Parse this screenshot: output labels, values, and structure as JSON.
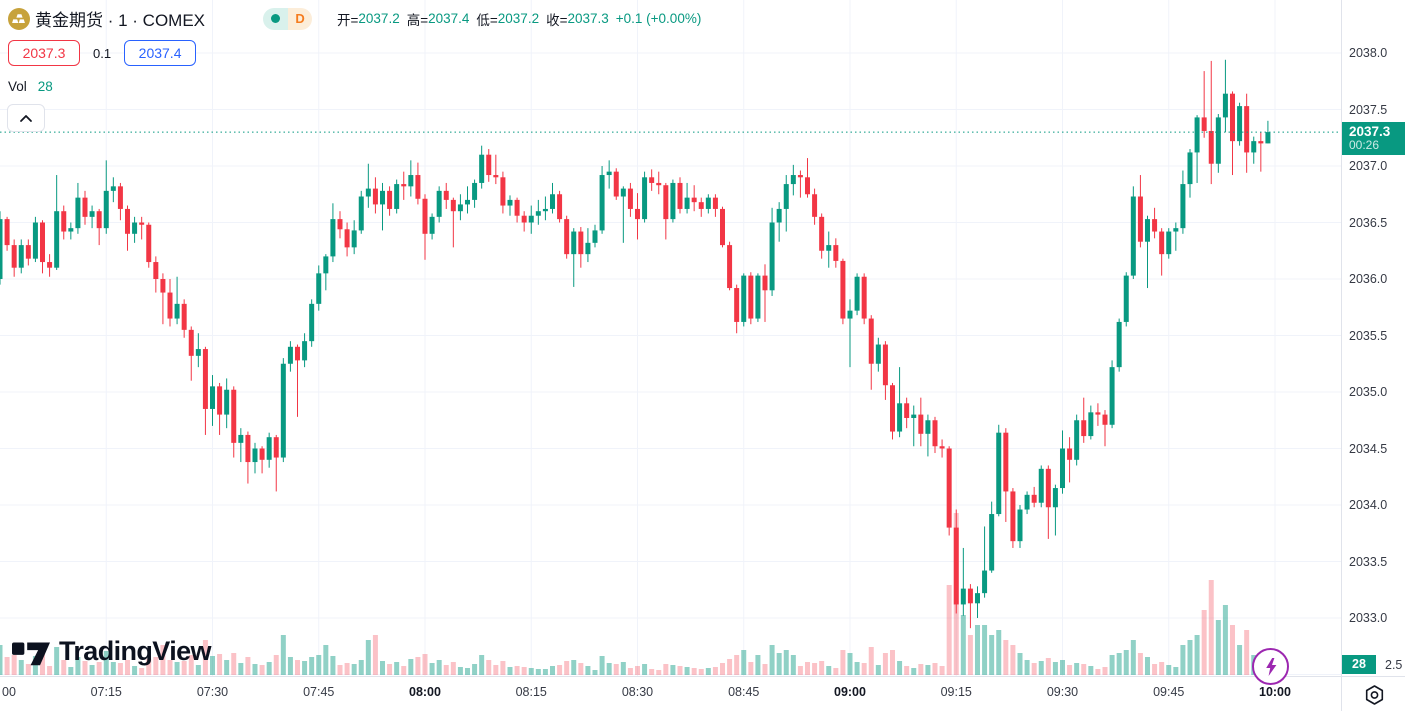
{
  "header": {
    "title": "黄金期货 · 1 · COMEX",
    "interval_badge": "D",
    "ohlc": {
      "open_label": "开=",
      "open_value": "2037.2",
      "high_label": "高=",
      "high_value": "2037.4",
      "low_label": "低=",
      "low_value": "2037.2",
      "close_label": "收=",
      "close_value": "2037.3",
      "change_value": "+0.1 (+0.00%)"
    },
    "bid": "2037.3",
    "spread": "0.1",
    "ask": "2037.4",
    "volume_indicator": {
      "label": "Vol",
      "value": "28"
    }
  },
  "watermark": {
    "brand": "TradingView"
  },
  "icons": {
    "symbol": "gold-bars-icon",
    "collapse": "chevron-up-icon",
    "boost": "lightning-icon",
    "settings": "gear-icon"
  },
  "price_scale": {
    "last_price": "2037.3",
    "countdown": "00:26",
    "volume_badge": "28",
    "partial_bottom_tick": "2.5"
  },
  "colors": {
    "up": "#089981",
    "down": "#f23645",
    "vol_up": "rgba(8,153,129,0.45)",
    "vol_down": "rgba(242,54,69,0.30)",
    "grid": "#f0f3fa",
    "last_line": "#089981",
    "bid": "#f23645",
    "ask": "#2962ff",
    "boost": "#9c27b0"
  },
  "chart_data": {
    "type": "candlestick_with_volume",
    "symbol": "黄金期货 COMEX",
    "interval": "1 minute",
    "start_time": "07:00",
    "last_price": 2037.3,
    "price_axis_ticks": [
      2038.0,
      2037.5,
      2037.0,
      2036.5,
      2036.0,
      2035.5,
      2035.0,
      2034.5,
      2034.0,
      2033.5,
      2033.0,
      2032.5
    ],
    "time_axis_ticks": [
      {
        "label": "00",
        "m": 0,
        "bold": false
      },
      {
        "label": "07:15",
        "m": 15,
        "bold": false
      },
      {
        "label": "07:30",
        "m": 30,
        "bold": false
      },
      {
        "label": "07:45",
        "m": 45,
        "bold": false
      },
      {
        "label": "08:00",
        "m": 60,
        "bold": true
      },
      {
        "label": "08:15",
        "m": 75,
        "bold": false
      },
      {
        "label": "08:30",
        "m": 90,
        "bold": false
      },
      {
        "label": "08:45",
        "m": 105,
        "bold": false
      },
      {
        "label": "09:00",
        "m": 120,
        "bold": true
      },
      {
        "label": "09:15",
        "m": 135,
        "bold": false
      },
      {
        "label": "09:30",
        "m": 150,
        "bold": false
      },
      {
        "label": "09:45",
        "m": 165,
        "bold": false
      },
      {
        "label": "10:00",
        "m": 180,
        "bold": true
      }
    ],
    "candles": [
      [
        2036.0,
        2036.6,
        2035.95,
        2036.53,
        60
      ],
      [
        2036.53,
        2036.55,
        2036.25,
        2036.3,
        36
      ],
      [
        2036.3,
        2036.35,
        2036.02,
        2036.1,
        40
      ],
      [
        2036.1,
        2036.35,
        2036.05,
        2036.3,
        30
      ],
      [
        2036.3,
        2036.35,
        2036.12,
        2036.18,
        22
      ],
      [
        2036.18,
        2036.55,
        2036.15,
        2036.5,
        38
      ],
      [
        2036.5,
        2036.52,
        2036.05,
        2036.15,
        42
      ],
      [
        2036.15,
        2036.22,
        2036.02,
        2036.1,
        18
      ],
      [
        2036.1,
        2036.92,
        2036.08,
        2036.6,
        56
      ],
      [
        2036.6,
        2036.65,
        2036.35,
        2036.42,
        30
      ],
      [
        2036.42,
        2036.5,
        2036.35,
        2036.45,
        16
      ],
      [
        2036.45,
        2036.85,
        2036.4,
        2036.72,
        36
      ],
      [
        2036.72,
        2036.78,
        2036.48,
        2036.55,
        28
      ],
      [
        2036.55,
        2036.65,
        2036.45,
        2036.6,
        20
      ],
      [
        2036.6,
        2036.62,
        2036.3,
        2036.45,
        26
      ],
      [
        2036.45,
        2037.05,
        2036.4,
        2036.78,
        48
      ],
      [
        2036.78,
        2036.9,
        2036.68,
        2036.82,
        26
      ],
      [
        2036.82,
        2036.85,
        2036.52,
        2036.62,
        24
      ],
      [
        2036.62,
        2036.65,
        2036.25,
        2036.4,
        30
      ],
      [
        2036.4,
        2036.55,
        2036.32,
        2036.5,
        18
      ],
      [
        2036.5,
        2036.55,
        2036.35,
        2036.48,
        14
      ],
      [
        2036.48,
        2036.5,
        2036.1,
        2036.15,
        32
      ],
      [
        2036.15,
        2036.2,
        2035.88,
        2036.0,
        36
      ],
      [
        2036.0,
        2036.05,
        2035.6,
        2035.88,
        60
      ],
      [
        2035.88,
        2036.0,
        2035.58,
        2035.65,
        30
      ],
      [
        2035.65,
        2036.02,
        2035.6,
        2035.78,
        26
      ],
      [
        2035.78,
        2035.82,
        2035.48,
        2035.55,
        28
      ],
      [
        2035.55,
        2035.58,
        2035.1,
        2035.32,
        40
      ],
      [
        2035.32,
        2035.52,
        2035.22,
        2035.38,
        20
      ],
      [
        2035.38,
        2035.4,
        2034.62,
        2034.85,
        70
      ],
      [
        2034.85,
        2035.15,
        2034.7,
        2035.05,
        38
      ],
      [
        2035.05,
        2035.08,
        2034.62,
        2034.8,
        42
      ],
      [
        2034.8,
        2035.12,
        2034.68,
        2035.02,
        30
      ],
      [
        2035.02,
        2035.05,
        2034.42,
        2034.55,
        44
      ],
      [
        2034.55,
        2034.68,
        2034.38,
        2034.62,
        24
      ],
      [
        2034.62,
        2034.65,
        2034.19,
        2034.38,
        36
      ],
      [
        2034.38,
        2034.55,
        2034.28,
        2034.5,
        22
      ],
      [
        2034.5,
        2034.52,
        2034.28,
        2034.4,
        20
      ],
      [
        2034.4,
        2034.64,
        2034.33,
        2034.6,
        26
      ],
      [
        2034.6,
        2034.62,
        2034.12,
        2034.42,
        40
      ],
      [
        2034.42,
        2035.3,
        2034.38,
        2035.25,
        80
      ],
      [
        2035.25,
        2035.45,
        2035.18,
        2035.4,
        36
      ],
      [
        2035.4,
        2035.42,
        2034.78,
        2035.28,
        30
      ],
      [
        2035.28,
        2035.52,
        2035.22,
        2035.45,
        28
      ],
      [
        2035.45,
        2035.82,
        2035.4,
        2035.78,
        36
      ],
      [
        2035.78,
        2036.12,
        2035.72,
        2036.05,
        40
      ],
      [
        2036.05,
        2036.22,
        2035.9,
        2036.2,
        60
      ],
      [
        2036.2,
        2036.67,
        2036.15,
        2036.53,
        38
      ],
      [
        2036.53,
        2036.6,
        2036.36,
        2036.44,
        20
      ],
      [
        2036.44,
        2036.5,
        2036.2,
        2036.28,
        24
      ],
      [
        2036.28,
        2036.52,
        2036.22,
        2036.43,
        22
      ],
      [
        2036.43,
        2036.78,
        2036.4,
        2036.73,
        30
      ],
      [
        2036.73,
        2037.02,
        2036.63,
        2036.8,
        70
      ],
      [
        2036.8,
        2036.9,
        2036.58,
        2036.66,
        80
      ],
      [
        2036.66,
        2036.85,
        2036.43,
        2036.78,
        28
      ],
      [
        2036.78,
        2036.82,
        2036.56,
        2036.62,
        22
      ],
      [
        2036.62,
        2036.88,
        2036.58,
        2036.84,
        26
      ],
      [
        2036.84,
        2036.95,
        2036.7,
        2036.82,
        18
      ],
      [
        2036.82,
        2037.05,
        2036.73,
        2036.92,
        32
      ],
      [
        2036.92,
        2037.03,
        2036.66,
        2036.71,
        36
      ],
      [
        2036.71,
        2036.75,
        2036.17,
        2036.4,
        42
      ],
      [
        2036.4,
        2036.58,
        2036.35,
        2036.55,
        24
      ],
      [
        2036.55,
        2036.82,
        2036.5,
        2036.78,
        30
      ],
      [
        2036.78,
        2036.85,
        2036.62,
        2036.7,
        20
      ],
      [
        2036.7,
        2036.72,
        2036.28,
        2036.6,
        26
      ],
      [
        2036.6,
        2036.75,
        2036.52,
        2036.66,
        16
      ],
      [
        2036.66,
        2036.82,
        2036.58,
        2036.7,
        14
      ],
      [
        2036.7,
        2036.88,
        2036.63,
        2036.85,
        22
      ],
      [
        2036.85,
        2037.18,
        2036.8,
        2037.1,
        40
      ],
      [
        2037.1,
        2037.15,
        2036.86,
        2036.92,
        30
      ],
      [
        2036.92,
        2037.1,
        2036.84,
        2036.9,
        20
      ],
      [
        2036.9,
        2036.95,
        2036.58,
        2036.65,
        28
      ],
      [
        2036.65,
        2036.74,
        2036.56,
        2036.7,
        16
      ],
      [
        2036.7,
        2036.72,
        2036.5,
        2036.56,
        18
      ],
      [
        2036.56,
        2036.6,
        2036.42,
        2036.5,
        16
      ],
      [
        2036.5,
        2036.65,
        2036.4,
        2036.56,
        14
      ],
      [
        2036.56,
        2036.7,
        2036.48,
        2036.6,
        12
      ],
      [
        2036.6,
        2036.73,
        2036.52,
        2036.62,
        12
      ],
      [
        2036.62,
        2036.85,
        2036.58,
        2036.75,
        18
      ],
      [
        2036.75,
        2036.78,
        2036.5,
        2036.53,
        20
      ],
      [
        2036.53,
        2036.56,
        2036.18,
        2036.22,
        28
      ],
      [
        2036.22,
        2036.45,
        2035.93,
        2036.42,
        30
      ],
      [
        2036.42,
        2036.46,
        2036.1,
        2036.22,
        24
      ],
      [
        2036.22,
        2036.45,
        2036.15,
        2036.32,
        18
      ],
      [
        2036.32,
        2036.48,
        2036.28,
        2036.43,
        10
      ],
      [
        2036.43,
        2037.0,
        2036.4,
        2036.92,
        38
      ],
      [
        2036.92,
        2037.05,
        2036.8,
        2036.95,
        24
      ],
      [
        2036.95,
        2036.98,
        2036.7,
        2036.73,
        22
      ],
      [
        2036.73,
        2036.82,
        2036.32,
        2036.8,
        26
      ],
      [
        2036.8,
        2036.85,
        2036.55,
        2036.62,
        14
      ],
      [
        2036.62,
        2036.76,
        2036.35,
        2036.53,
        18
      ],
      [
        2036.53,
        2036.95,
        2036.5,
        2036.9,
        22
      ],
      [
        2036.9,
        2036.97,
        2036.78,
        2036.85,
        12
      ],
      [
        2036.85,
        2036.95,
        2036.75,
        2036.83,
        10
      ],
      [
        2036.83,
        2036.85,
        2036.35,
        2036.53,
        22
      ],
      [
        2036.53,
        2036.88,
        2036.5,
        2036.85,
        20
      ],
      [
        2036.85,
        2036.9,
        2036.58,
        2036.62,
        18
      ],
      [
        2036.62,
        2036.85,
        2036.58,
        2036.72,
        16
      ],
      [
        2036.72,
        2036.83,
        2036.6,
        2036.68,
        14
      ],
      [
        2036.68,
        2036.72,
        2036.55,
        2036.62,
        12
      ],
      [
        2036.62,
        2036.75,
        2036.58,
        2036.72,
        14
      ],
      [
        2036.72,
        2036.75,
        2036.55,
        2036.62,
        16
      ],
      [
        2036.62,
        2036.64,
        2036.28,
        2036.3,
        24
      ],
      [
        2036.3,
        2036.33,
        2035.9,
        2035.92,
        32
      ],
      [
        2035.92,
        2035.95,
        2035.52,
        2035.62,
        40
      ],
      [
        2035.62,
        2036.05,
        2035.58,
        2036.03,
        50
      ],
      [
        2036.03,
        2036.06,
        2035.6,
        2035.65,
        26
      ],
      [
        2035.65,
        2036.05,
        2035.62,
        2036.03,
        40
      ],
      [
        2036.03,
        2036.13,
        2035.62,
        2035.9,
        22
      ],
      [
        2035.9,
        2036.63,
        2035.85,
        2036.5,
        60
      ],
      [
        2036.5,
        2036.68,
        2036.33,
        2036.62,
        44
      ],
      [
        2036.62,
        2036.92,
        2036.42,
        2036.84,
        50
      ],
      [
        2036.84,
        2037.01,
        2036.74,
        2036.92,
        40
      ],
      [
        2036.92,
        2036.96,
        2036.72,
        2036.9,
        18
      ],
      [
        2036.9,
        2037.07,
        2036.72,
        2036.75,
        26
      ],
      [
        2036.75,
        2036.8,
        2036.48,
        2036.55,
        24
      ],
      [
        2036.55,
        2036.58,
        2036.18,
        2036.25,
        28
      ],
      [
        2036.25,
        2036.42,
        2036.1,
        2036.3,
        18
      ],
      [
        2036.3,
        2036.36,
        2036.1,
        2036.16,
        14
      ],
      [
        2036.16,
        2036.18,
        2035.6,
        2035.65,
        50
      ],
      [
        2035.65,
        2035.82,
        2035.22,
        2035.72,
        44
      ],
      [
        2035.72,
        2036.05,
        2035.68,
        2036.02,
        26
      ],
      [
        2036.02,
        2036.05,
        2035.6,
        2035.65,
        24
      ],
      [
        2035.65,
        2035.68,
        2035.02,
        2035.25,
        56
      ],
      [
        2035.25,
        2035.48,
        2035.18,
        2035.42,
        20
      ],
      [
        2035.42,
        2035.45,
        2034.93,
        2035.06,
        44
      ],
      [
        2035.06,
        2035.08,
        2034.58,
        2034.65,
        50
      ],
      [
        2034.65,
        2035.22,
        2034.6,
        2034.9,
        28
      ],
      [
        2034.9,
        2034.95,
        2034.68,
        2034.77,
        18
      ],
      [
        2034.77,
        2034.88,
        2034.52,
        2034.8,
        14
      ],
      [
        2034.8,
        2034.95,
        2034.52,
        2034.63,
        22
      ],
      [
        2034.63,
        2034.8,
        2034.43,
        2034.75,
        20
      ],
      [
        2034.75,
        2034.78,
        2034.46,
        2034.52,
        24
      ],
      [
        2034.52,
        2034.58,
        2034.42,
        2034.5,
        18
      ],
      [
        2034.5,
        2034.52,
        2033.73,
        2033.8,
        180
      ],
      [
        2033.8,
        2033.96,
        2033.04,
        2033.12,
        324
      ],
      [
        2033.12,
        2033.62,
        2033.02,
        2033.26,
        120
      ],
      [
        2033.26,
        2033.3,
        2032.91,
        2033.13,
        80
      ],
      [
        2033.13,
        2033.28,
        2033.0,
        2033.22,
        100
      ],
      [
        2033.22,
        2033.81,
        2033.18,
        2033.42,
        100
      ],
      [
        2033.42,
        2034.03,
        2033.4,
        2033.92,
        80
      ],
      [
        2033.92,
        2034.71,
        2033.9,
        2034.64,
        90
      ],
      [
        2034.64,
        2034.68,
        2033.85,
        2034.12,
        70
      ],
      [
        2034.12,
        2034.15,
        2033.62,
        2033.68,
        60
      ],
      [
        2033.68,
        2034.0,
        2033.62,
        2033.96,
        44
      ],
      [
        2033.96,
        2034.12,
        2033.92,
        2034.09,
        30
      ],
      [
        2034.09,
        2034.16,
        2033.98,
        2034.02,
        24
      ],
      [
        2034.02,
        2034.35,
        2033.98,
        2034.32,
        28
      ],
      [
        2034.32,
        2034.35,
        2033.7,
        2033.98,
        34
      ],
      [
        2033.98,
        2034.18,
        2033.73,
        2034.15,
        26
      ],
      [
        2034.15,
        2034.66,
        2034.1,
        2034.5,
        30
      ],
      [
        2034.5,
        2034.6,
        2034.2,
        2034.4,
        20
      ],
      [
        2034.4,
        2034.8,
        2034.35,
        2034.75,
        24
      ],
      [
        2034.75,
        2034.95,
        2034.55,
        2034.61,
        22
      ],
      [
        2034.61,
        2034.88,
        2034.58,
        2034.82,
        18
      ],
      [
        2034.82,
        2034.9,
        2034.7,
        2034.8,
        12
      ],
      [
        2034.8,
        2034.84,
        2034.52,
        2034.71,
        16
      ],
      [
        2034.71,
        2035.28,
        2034.68,
        2035.22,
        40
      ],
      [
        2035.22,
        2035.65,
        2035.18,
        2035.62,
        44
      ],
      [
        2035.62,
        2036.06,
        2035.58,
        2036.03,
        50
      ],
      [
        2036.03,
        2036.82,
        2036.0,
        2036.73,
        70
      ],
      [
        2036.73,
        2036.92,
        2036.28,
        2036.33,
        44
      ],
      [
        2036.33,
        2036.56,
        2035.92,
        2036.53,
        36
      ],
      [
        2036.53,
        2036.63,
        2036.36,
        2036.42,
        22
      ],
      [
        2036.42,
        2036.45,
        2036.03,
        2036.22,
        26
      ],
      [
        2036.22,
        2036.45,
        2036.18,
        2036.42,
        20
      ],
      [
        2036.42,
        2036.5,
        2036.25,
        2036.45,
        16
      ],
      [
        2036.45,
        2036.96,
        2036.4,
        2036.84,
        60
      ],
      [
        2036.84,
        2037.15,
        2036.72,
        2037.12,
        70
      ],
      [
        2037.12,
        2037.45,
        2036.85,
        2037.43,
        80
      ],
      [
        2037.43,
        2037.84,
        2037.25,
        2037.31,
        130
      ],
      [
        2037.31,
        2037.93,
        2036.84,
        2037.02,
        190
      ],
      [
        2037.02,
        2037.46,
        2036.94,
        2037.43,
        110
      ],
      [
        2037.43,
        2037.94,
        2037.3,
        2037.64,
        140
      ],
      [
        2037.64,
        2037.66,
        2036.92,
        2037.22,
        100
      ],
      [
        2037.22,
        2037.56,
        2037.18,
        2037.53,
        60
      ],
      [
        2037.53,
        2037.64,
        2036.94,
        2037.12,
        90
      ],
      [
        2037.12,
        2037.26,
        2037.02,
        2037.22,
        40
      ],
      [
        2037.22,
        2037.3,
        2036.95,
        2037.2,
        30
      ],
      [
        2037.2,
        2037.4,
        2037.2,
        2037.3,
        28
      ]
    ]
  }
}
